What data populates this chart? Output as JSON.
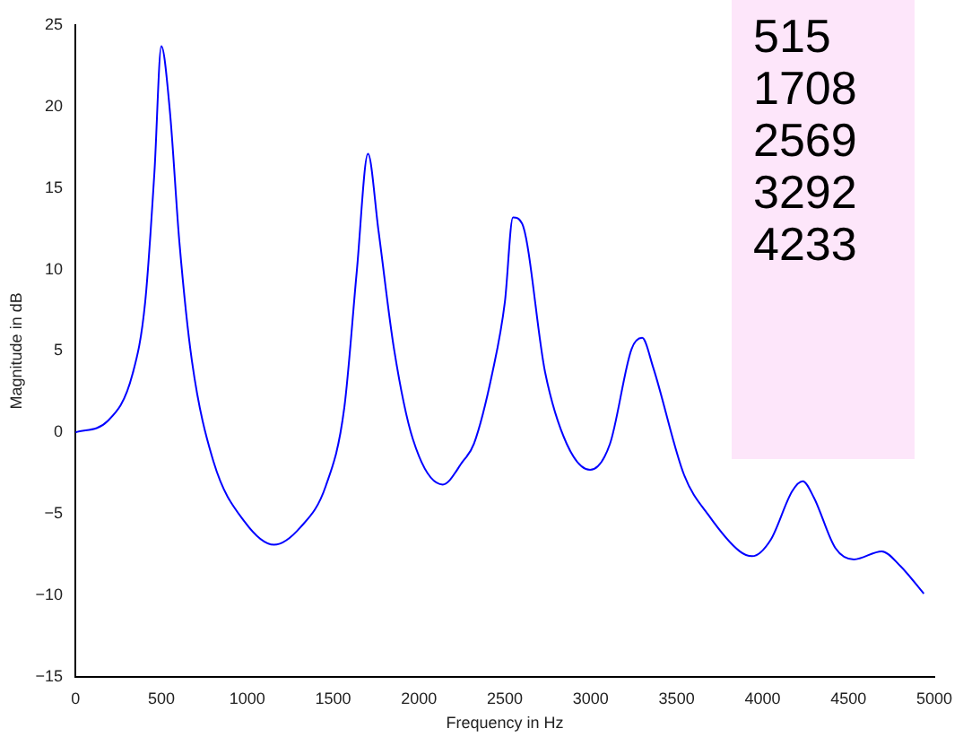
{
  "chart_data": {
    "type": "line",
    "xlabel": "Frequency in Hz",
    "ylabel": "Magnitude in dB",
    "x": [
      0,
      188,
      333,
      406,
      460,
      500,
      550,
      605,
      678,
      804,
      986,
      1156,
      1312,
      1457,
      1565,
      1638,
      1703,
      1764,
      1855,
      1964,
      2138,
      2254,
      2320,
      2428,
      2500,
      2547,
      2601,
      2734,
      2860,
      2996,
      3112,
      3237,
      3299,
      3363,
      3543,
      3687,
      3867,
      3939,
      4047,
      4173,
      4234,
      4299,
      4424,
      4532,
      4694,
      4802,
      4939
    ],
    "series": [
      {
        "color": "#0000ff",
        "values": [
          0,
          0.7,
          3.6,
          8,
          16,
          23.7,
          19.7,
          11.7,
          4.4,
          -1.8,
          -5.5,
          -6.9,
          -5.8,
          -3.3,
          1.5,
          9.9,
          17.1,
          12.4,
          5.1,
          -0.4,
          -3.2,
          -1.8,
          -0.7,
          3.7,
          8,
          13.2,
          12.8,
          3.7,
          -0.7,
          -2.3,
          -0.7,
          5.1,
          5.8,
          4,
          -2.6,
          -5.1,
          -7.3,
          -7.6,
          -6.6,
          -3.6,
          -3,
          -4,
          -7.1,
          -7.8,
          -7.3,
          -8.2,
          -9.9
        ]
      }
    ],
    "xlim": [
      0,
      5000
    ],
    "xticks": [
      0,
      500,
      1000,
      1500,
      2000,
      2500,
      3000,
      3500,
      4000,
      4500,
      5000
    ],
    "ylim": [
      -15,
      25
    ],
    "yticks": [
      {
        "value": -15,
        "label": "−15"
      },
      {
        "value": -10,
        "label": "−10"
      },
      {
        "value": -5,
        "label": "−5"
      },
      0,
      5,
      10,
      15,
      20,
      25
    ],
    "grid": false,
    "legend": false,
    "marker": "none",
    "line_style": "solid",
    "annotations": [
      "515",
      "1708",
      "2569",
      "3292",
      "4233"
    ]
  }
}
